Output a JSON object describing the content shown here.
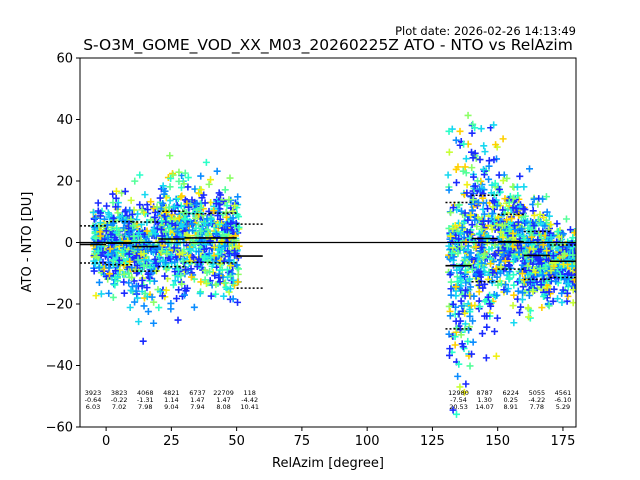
{
  "chart_data": {
    "type": "scatter",
    "plot_date": "Plot date: 2026-02-26 14:13:49",
    "title": "S-O3M_GOME_VOD_XX_M03_20260225Z ATO - NTO vs RelAzim",
    "xlabel": "RelAzim [degree]",
    "ylabel": "ATO - NTO [DU]",
    "xlim": [
      -10,
      180
    ],
    "ylim": [
      -60,
      60
    ],
    "xticks": [
      0,
      25,
      50,
      75,
      100,
      125,
      150,
      175
    ],
    "yticks": [
      -60,
      -40,
      -20,
      0,
      20,
      40,
      60
    ],
    "xtick_labels": [
      "0",
      "25",
      "50",
      "75",
      "100",
      "125",
      "150",
      "175"
    ],
    "ytick_labels": [
      "−60",
      "−40",
      "−20",
      "0",
      "20",
      "40",
      "60"
    ],
    "zero_line": 0,
    "cluster_ranges": [
      {
        "xmin": -5,
        "xmax": 51
      },
      {
        "xmin": 131,
        "xmax": 180
      }
    ],
    "bins": [
      {
        "xmin": -10,
        "xmax": 0,
        "count": "3923",
        "mean": "-0.64",
        "std": "6.03",
        "mean_val": -0.64,
        "std_val": 6.03
      },
      {
        "xmin": 0,
        "xmax": 10,
        "count": "3823",
        "mean": "-0.22",
        "std": "7.02",
        "mean_val": -0.22,
        "std_val": 7.02
      },
      {
        "xmin": 10,
        "xmax": 20,
        "count": "4068",
        "mean": "-1.31",
        "std": "7.98",
        "mean_val": -1.31,
        "std_val": 7.98
      },
      {
        "xmin": 20,
        "xmax": 30,
        "count": "4821",
        "mean": "1.14",
        "std": "9.04",
        "mean_val": 1.14,
        "std_val": 9.04
      },
      {
        "xmin": 30,
        "xmax": 40,
        "count": "6737",
        "mean": "1.47",
        "std": "7.94",
        "mean_val": 1.47,
        "std_val": 7.94
      },
      {
        "xmin": 40,
        "xmax": 50,
        "count": "22709",
        "mean": "1.47",
        "std": "8.08",
        "mean_val": 1.47,
        "std_val": 8.08
      },
      {
        "xmin": 50,
        "xmax": 60,
        "count": "118",
        "mean": "-4.42",
        "std": "10.41",
        "mean_val": -4.42,
        "std_val": 10.41
      },
      {
        "xmin": 130,
        "xmax": 140,
        "count": "12980",
        "mean": "-7.54",
        "std": "20.53",
        "mean_val": -7.54,
        "std_val": 20.53
      },
      {
        "xmin": 140,
        "xmax": 150,
        "count": "8787",
        "mean": "1.30",
        "std": "14.07",
        "mean_val": 1.3,
        "std_val": 14.07
      },
      {
        "xmin": 150,
        "xmax": 160,
        "count": "6224",
        "mean": "0.25",
        "std": "8.91",
        "mean_val": 0.25,
        "std_val": 8.91
      },
      {
        "xmin": 160,
        "xmax": 170,
        "count": "5055",
        "mean": "-4.22",
        "std": "7.78",
        "mean_val": -4.22,
        "std_val": 7.78
      },
      {
        "xmin": 170,
        "xmax": 180,
        "count": "4561",
        "mean": "-6.10",
        "std": "5.29",
        "mean_val": -6.1,
        "std_val": 5.29
      }
    ],
    "colors": {
      "colormap": [
        "#1a2bff",
        "#0a8cff",
        "#16d8f0",
        "#2affc8",
        "#55ff9a",
        "#8cff66",
        "#c8ff38",
        "#f0f014",
        "#ffd000"
      ],
      "axis": "#000000",
      "background": "#ffffff"
    }
  }
}
